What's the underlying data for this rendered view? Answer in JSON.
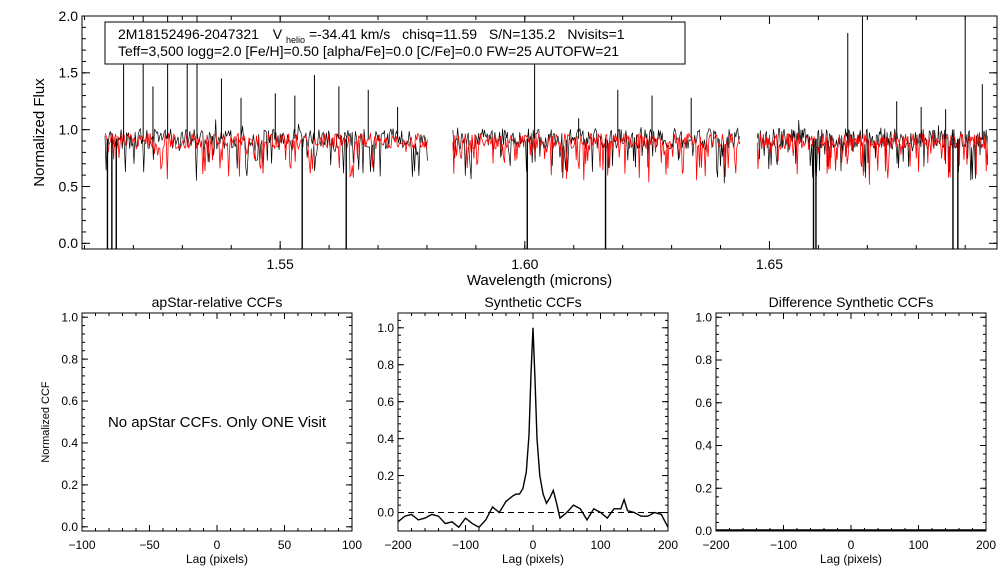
{
  "colors": {
    "observed": "#000000",
    "model": "#ff0000",
    "axes": "#000000"
  },
  "header": {
    "star_id": "2M18152496-2047321",
    "v_symbol": "V",
    "v_subscript": "helio",
    "v_value": "=-34.41 km/s",
    "chisq": "chisq=11.59",
    "snr": "S/N=135.2",
    "nvisits": "Nvisits=1",
    "line2": "Teff=3,500 logg=2.0 [Fe/H]=0.50 [alpha/Fe]=0.0 [C/Fe]=0.0 FW=25 AUTOFW=21"
  },
  "chart_data": [
    {
      "id": "spectrum",
      "type": "line",
      "title": "",
      "xlabel": "Wavelength (microns)",
      "ylabel": "Normalized Flux",
      "xlim": [
        1.5095,
        1.6965
      ],
      "ylim": [
        -0.05,
        2.0
      ],
      "xticks": [
        1.55,
        1.6,
        1.65
      ],
      "xtick_labels": [
        "1.55",
        "1.60",
        "1.65"
      ],
      "yticks": [
        0.0,
        0.5,
        1.0,
        1.5,
        2.0
      ],
      "ytick_labels": [
        "0.0",
        "0.5",
        "1.0",
        "1.5",
        "2.0"
      ],
      "chip_ranges": [
        [
          1.5142,
          1.5801
        ],
        [
          1.5853,
          1.6439
        ],
        [
          1.6475,
          1.6946
        ]
      ],
      "series": [
        {
          "name": "observed",
          "continuum": 0.92,
          "emission": [
            [
              1.518,
              1.95
            ],
            [
              1.522,
              2.0
            ],
            [
              1.524,
              1.38
            ],
            [
              1.527,
              2.0
            ],
            [
              1.531,
              1.75
            ],
            [
              1.533,
              2.0
            ],
            [
              1.538,
              1.45
            ],
            [
              1.542,
              1.28
            ],
            [
              1.549,
              1.32
            ],
            [
              1.553,
              1.3
            ],
            [
              1.557,
              1.48
            ],
            [
              1.562,
              1.38
            ],
            [
              1.568,
              1.35
            ],
            [
              1.574,
              1.2
            ],
            [
              1.602,
              1.6
            ],
            [
              1.611,
              1.1
            ],
            [
              1.619,
              1.35
            ],
            [
              1.626,
              1.3
            ],
            [
              1.634,
              1.28
            ],
            [
              1.666,
              1.85
            ],
            [
              1.669,
              2.0
            ],
            [
              1.676,
              1.25
            ],
            [
              1.681,
              1.2
            ],
            [
              1.686,
              1.18
            ],
            [
              1.69,
              2.0
            ],
            [
              1.6935,
              1.4
            ]
          ],
          "absorption": [
            [
              1.5147,
              -0.05
            ],
            [
              1.5156,
              -0.05
            ],
            [
              1.5165,
              -0.05
            ],
            [
              1.5545,
              -0.05
            ],
            [
              1.5635,
              -0.05
            ],
            [
              1.6005,
              -0.05
            ],
            [
              1.6165,
              -0.05
            ],
            [
              1.659,
              -0.05
            ],
            [
              1.6595,
              -0.05
            ],
            [
              1.6875,
              -0.05
            ],
            [
              1.6885,
              -0.05
            ]
          ]
        },
        {
          "name": "model",
          "continuum": 0.9,
          "emission": [],
          "absorption": []
        }
      ]
    },
    {
      "id": "apstar-ccf",
      "type": "line",
      "title": "apStar-relative CCFs",
      "xlabel": "Lag (pixels)",
      "ylabel": "Normalized CCF",
      "xlim": [
        -100,
        100
      ],
      "ylim": [
        -0.02,
        1.02
      ],
      "xticks": [
        -100,
        -50,
        0,
        50,
        100
      ],
      "xtick_labels": [
        "−100",
        "−50",
        "0",
        "50",
        "100"
      ],
      "yticks": [
        0.0,
        0.2,
        0.4,
        0.6,
        0.8,
        1.0
      ],
      "ytick_labels": [
        "0.0",
        "0.2",
        "0.4",
        "0.6",
        "0.8",
        "1.0"
      ],
      "annotation": "No apStar CCFs.  Only ONE Visit",
      "series": []
    },
    {
      "id": "synthetic-ccf",
      "type": "line",
      "title": "Synthetic CCFs",
      "xlabel": "Lag (pixels)",
      "ylabel": "",
      "xlim": [
        -200,
        200
      ],
      "ylim": [
        -0.1,
        1.08
      ],
      "xticks": [
        -200,
        -100,
        0,
        100,
        200
      ],
      "xtick_labels": [
        "−200",
        "−100",
        "0",
        "100",
        "200"
      ],
      "yticks": [
        0.0,
        0.2,
        0.4,
        0.6,
        0.8,
        1.0
      ],
      "ytick_labels": [
        "0.0",
        "0.2",
        "0.4",
        "0.6",
        "0.8",
        "1.0"
      ],
      "zero_line": 0.0,
      "series": [
        {
          "name": "ccf",
          "x": [
            -200,
            -190,
            -180,
            -170,
            -160,
            -150,
            -140,
            -130,
            -120,
            -110,
            -100,
            -90,
            -80,
            -70,
            -60,
            -50,
            -40,
            -30,
            -25,
            -20,
            -15,
            -10,
            -6,
            -3,
            0,
            3,
            6,
            10,
            15,
            20,
            25,
            30,
            35,
            40,
            50,
            60,
            70,
            80,
            90,
            100,
            110,
            120,
            130,
            135,
            140,
            150,
            160,
            170,
            180,
            190,
            200
          ],
          "y": [
            -0.05,
            -0.02,
            -0.01,
            -0.04,
            -0.03,
            -0.01,
            -0.02,
            -0.06,
            -0.05,
            -0.08,
            -0.03,
            -0.06,
            -0.08,
            -0.04,
            0.03,
            0.0,
            0.06,
            0.09,
            0.1,
            0.1,
            0.13,
            0.22,
            0.42,
            0.75,
            1.0,
            0.72,
            0.4,
            0.2,
            0.1,
            0.05,
            0.08,
            0.12,
            0.05,
            -0.03,
            0.0,
            0.04,
            0.02,
            -0.04,
            0.02,
            0.0,
            -0.03,
            0.02,
            0.02,
            0.07,
            0.01,
            0.0,
            -0.02,
            -0.02,
            0.0,
            -0.01,
            -0.08
          ]
        }
      ]
    },
    {
      "id": "difference-ccf",
      "type": "line",
      "title": "Difference Synthetic CCFs",
      "xlabel": "Lag (pixels)",
      "ylabel": "",
      "xlim": [
        -200,
        200
      ],
      "ylim": [
        0.0,
        1.02
      ],
      "xticks": [
        -200,
        -100,
        0,
        100,
        200
      ],
      "xtick_labels": [
        "−200",
        "−100",
        "0",
        "100",
        "200"
      ],
      "yticks": [
        0.0,
        0.2,
        0.4,
        0.6,
        0.8,
        1.0
      ],
      "ytick_labels": [
        "0.0",
        "0.2",
        "0.4",
        "0.6",
        "0.8",
        "1.0"
      ],
      "series": [
        {
          "name": "difference",
          "x": [
            -200,
            200
          ],
          "y": [
            0.0,
            0.0
          ]
        }
      ]
    }
  ]
}
